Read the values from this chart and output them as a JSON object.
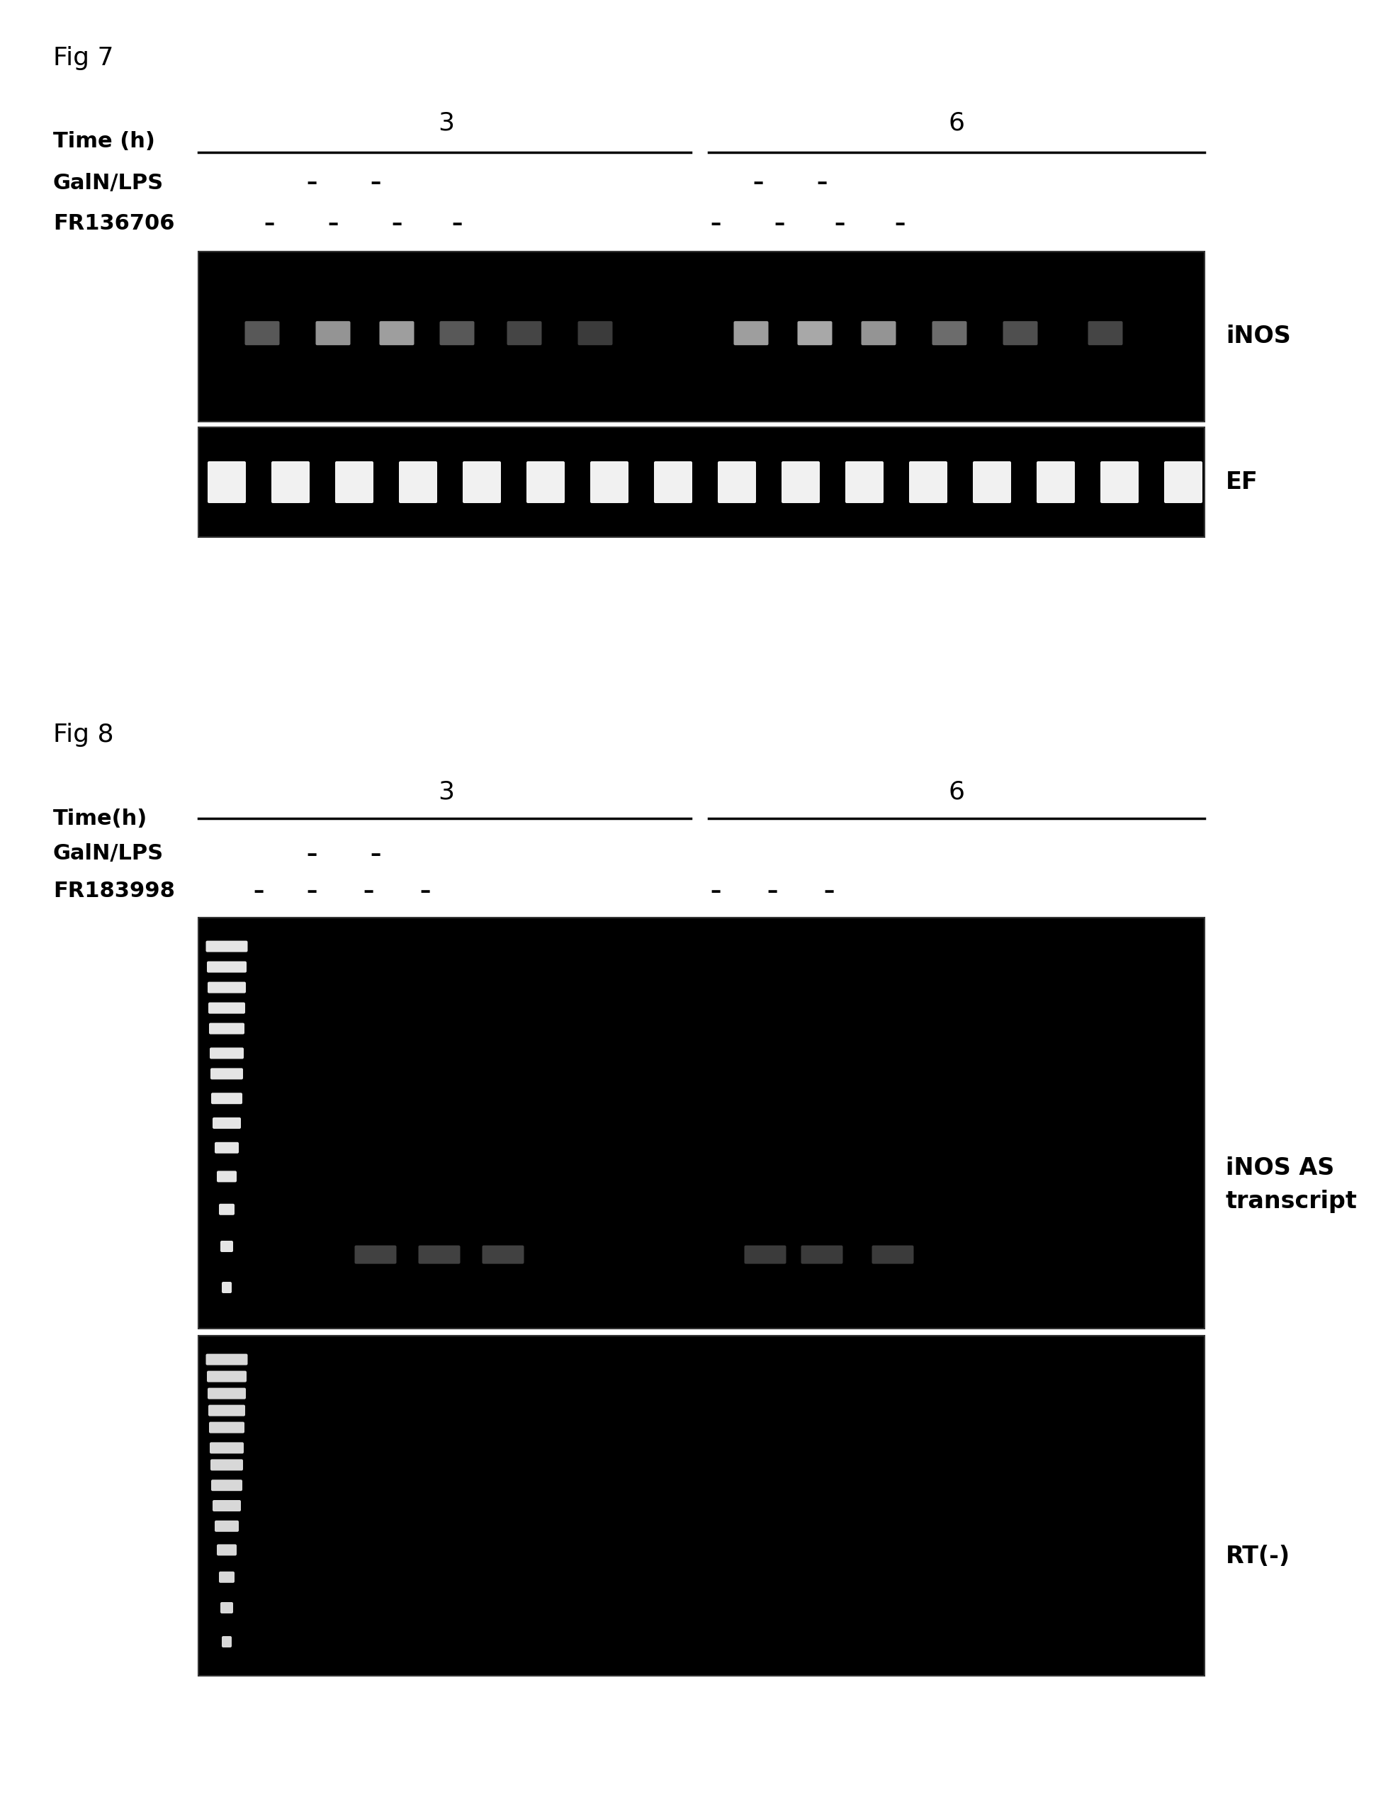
{
  "fig7_title": "Fig 7",
  "fig8_title": "Fig 8",
  "bg_color": "#ffffff",
  "fig7": {
    "time_label": "Time (h)",
    "row1_label": "GalN/LPS",
    "row2_label": "FR136706",
    "panel1_label": "iNOS",
    "panel2_label": "EF"
  },
  "fig8": {
    "time_label": "Time(h)",
    "row1_label": "GalN/LPS",
    "row2_label": "FR183998",
    "panel1_label": "iNOS AS\ntranscript",
    "panel2_label": "RT(-)"
  }
}
